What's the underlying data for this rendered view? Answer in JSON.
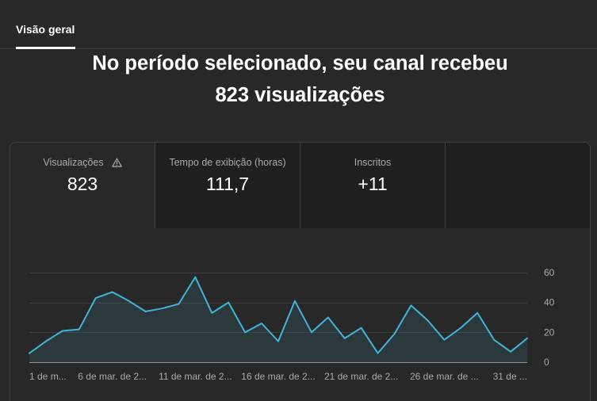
{
  "tabs": [
    {
      "label": "Visão geral"
    }
  ],
  "headline": {
    "line1": "No período selecionado, seu canal recebeu",
    "line2": "823 visualizações"
  },
  "metrics": [
    {
      "label": "Visualizações",
      "value": "823",
      "icon": "warning-icon"
    },
    {
      "label": "Tempo de exibição (horas)",
      "value": "111,7"
    },
    {
      "label": "Inscritos",
      "value": "+11"
    }
  ],
  "chart_data": {
    "type": "area",
    "x": [
      1,
      2,
      3,
      4,
      5,
      6,
      7,
      8,
      9,
      10,
      11,
      12,
      13,
      14,
      15,
      16,
      17,
      18,
      19,
      20,
      21,
      22,
      23,
      24,
      25,
      26,
      27,
      28,
      29,
      30,
      31
    ],
    "series": [
      {
        "values": [
          6,
          14,
          21,
          22,
          43,
          47,
          41,
          34,
          36,
          39,
          57,
          33,
          40,
          20,
          26,
          14,
          41,
          20,
          30,
          16,
          23,
          6,
          19,
          38,
          28,
          15,
          23,
          33,
          15,
          7,
          16
        ],
        "color": "#41b4d9"
      }
    ],
    "xlim": [
      1,
      31
    ],
    "ylim": [
      0,
      60
    ],
    "x_ticks": [
      {
        "x": 1,
        "label": "1 de m..."
      },
      {
        "x": 6,
        "label": "6 de mar. de 2..."
      },
      {
        "x": 11,
        "label": "11 de mar. de 2..."
      },
      {
        "x": 16,
        "label": "16 de mar. de 2..."
      },
      {
        "x": 21,
        "label": "21 de mar. de 2..."
      },
      {
        "x": 26,
        "label": "26 de mar. de ..."
      },
      {
        "x": 31,
        "label": "31 de ..."
      }
    ],
    "y_ticks": [
      0,
      20,
      40,
      60
    ],
    "y_axis_side": "right",
    "grid": true,
    "legend": "none"
  }
}
